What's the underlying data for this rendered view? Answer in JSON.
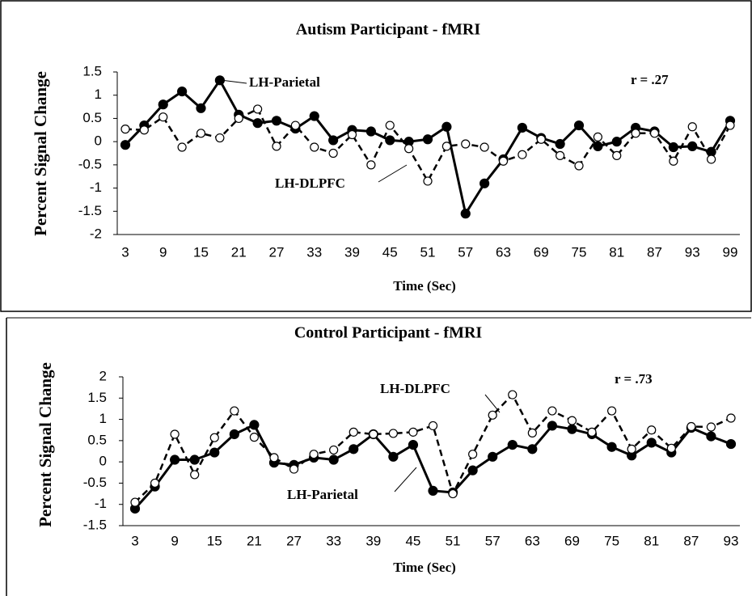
{
  "chart_data": [
    {
      "type": "line",
      "title": "Autism Participant - fMRI",
      "x_label": "Time (Sec)",
      "y_label": "Percent Signal Change",
      "annotation": "r = .27",
      "categories": [
        "3",
        null,
        "9",
        null,
        "15",
        null,
        "21",
        null,
        "27",
        null,
        "33",
        null,
        "39",
        null,
        "45",
        null,
        "51",
        null,
        "57",
        null,
        "63",
        null,
        "69",
        null,
        "75",
        null,
        "81",
        null,
        "87",
        null,
        "93",
        null,
        "99"
      ],
      "ylim": [
        -2,
        1.5
      ],
      "yticks": [
        -2,
        -1.5,
        -1,
        -0.5,
        0,
        0.5,
        1,
        1.5
      ],
      "grid": false,
      "series": [
        {
          "name": "LH-Parietal",
          "color": "#000000",
          "values": [
            -0.07,
            0.35,
            0.8,
            1.08,
            0.72,
            1.32,
            0.58,
            0.4,
            0.45,
            0.28,
            0.55,
            0.03,
            0.25,
            0.22,
            0.03,
            0.0,
            0.05,
            0.32,
            -1.55,
            -0.9,
            -0.38,
            0.3,
            0.08,
            -0.05,
            0.35,
            -0.1,
            0.0,
            0.3,
            0.22,
            -0.12,
            -0.1,
            -0.22,
            0.45
          ]
        },
        {
          "name": "LH-DLPFC",
          "color": "#000000",
          "values": [
            0.27,
            0.25,
            0.53,
            -0.12,
            0.18,
            0.08,
            0.5,
            0.7,
            -0.1,
            0.35,
            -0.12,
            -0.25,
            0.15,
            -0.5,
            0.35,
            -0.15,
            -0.85,
            -0.1,
            -0.05,
            -0.12,
            -0.42,
            -0.28,
            0.05,
            -0.3,
            -0.52,
            0.1,
            -0.3,
            0.18,
            0.18,
            -0.42,
            0.32,
            -0.38,
            0.35
          ]
        }
      ]
    },
    {
      "type": "line",
      "title": "Control Participant - fMRI",
      "x_label": "Time (Sec)",
      "y_label": "Percent Signal Change",
      "annotation": "r = .73",
      "categories": [
        "3",
        null,
        "9",
        null,
        "15",
        null,
        "21",
        null,
        "27",
        null,
        "33",
        null,
        "39",
        null,
        "45",
        null,
        "51",
        null,
        "57",
        null,
        "63",
        null,
        "69",
        null,
        "75",
        null,
        "81",
        null,
        "87",
        null,
        "93"
      ],
      "ylim": [
        -1.5,
        2
      ],
      "yticks": [
        -1.5,
        -1,
        -0.5,
        0,
        0.5,
        1,
        1.5,
        2
      ],
      "grid": false,
      "series": [
        {
          "name": "LH-Parietal",
          "color": "#000000",
          "values": [
            -1.1,
            -0.58,
            0.05,
            0.05,
            0.22,
            0.65,
            0.87,
            -0.02,
            -0.07,
            0.1,
            0.05,
            0.3,
            0.65,
            0.12,
            0.4,
            -0.68,
            -0.72,
            -0.2,
            0.12,
            0.4,
            0.3,
            0.85,
            0.77,
            0.65,
            0.35,
            0.15,
            0.45,
            0.22,
            0.8,
            0.6,
            0.42
          ]
        },
        {
          "name": "LH-DLPFC",
          "color": "#000000",
          "values": [
            -0.95,
            -0.5,
            0.65,
            -0.3,
            0.57,
            1.2,
            0.58,
            0.1,
            -0.17,
            0.18,
            0.28,
            0.7,
            0.65,
            0.67,
            0.7,
            0.85,
            -0.75,
            0.18,
            1.1,
            1.58,
            0.68,
            1.2,
            0.97,
            0.7,
            1.2,
            0.3,
            0.75,
            0.32,
            0.83,
            0.82,
            1.03
          ]
        }
      ]
    }
  ]
}
